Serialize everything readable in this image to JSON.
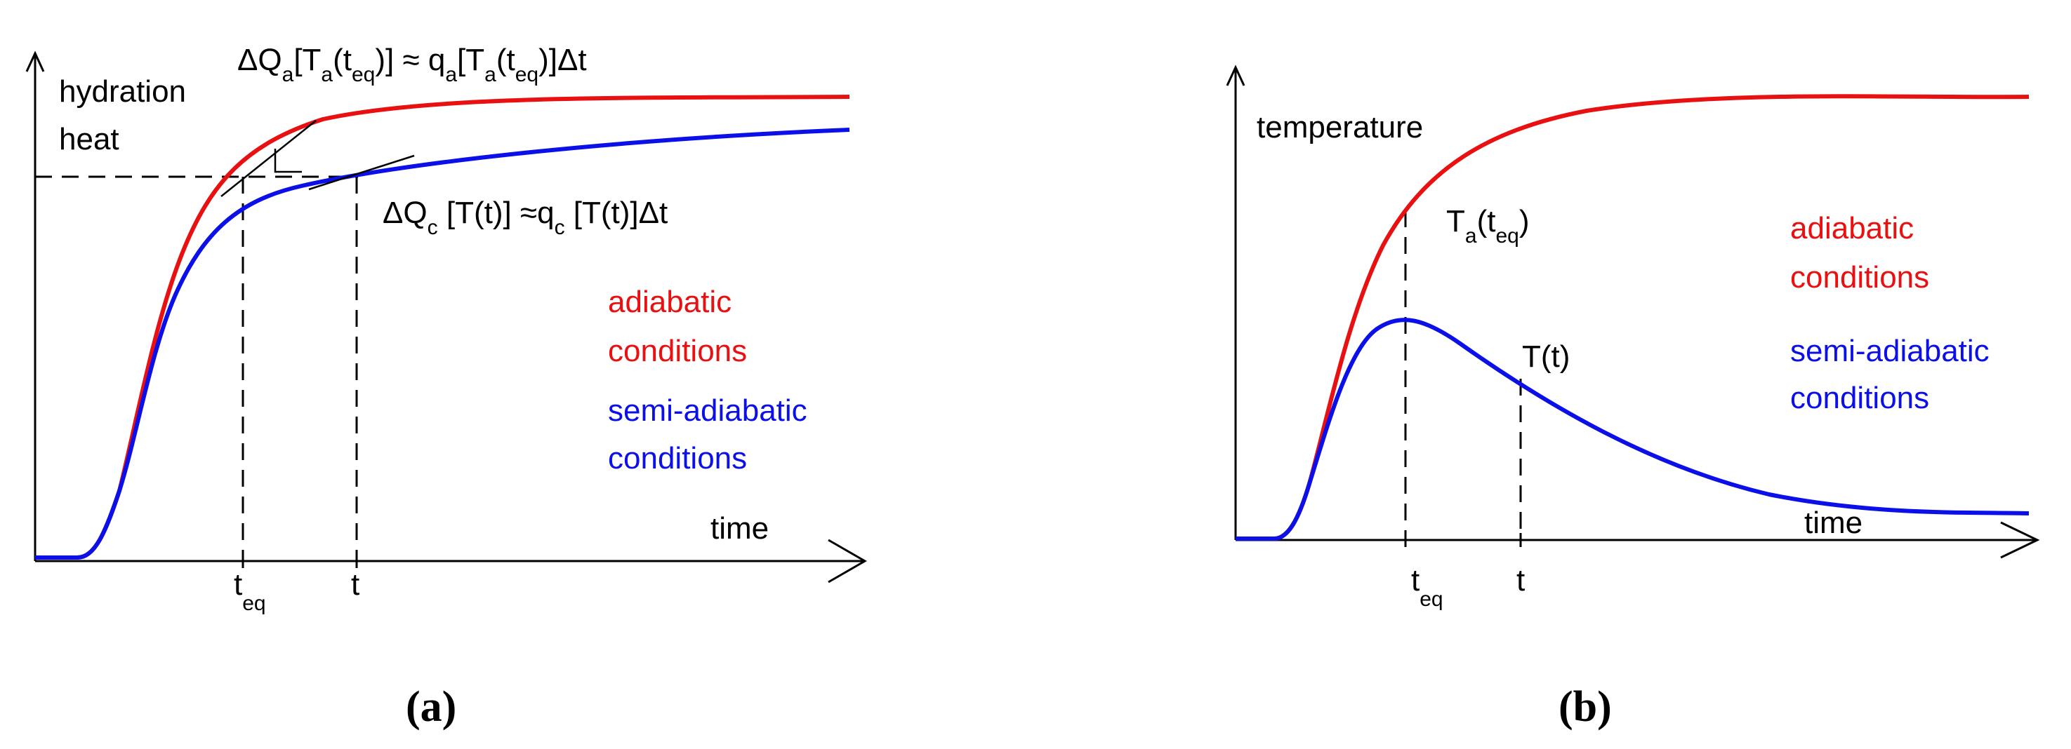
{
  "panel_a": {
    "caption": "(a)",
    "y_axis_label_line1": "hydration",
    "y_axis_label_line2": "heat",
    "x_axis_label": "time",
    "tick_teq_main": "t",
    "tick_teq_sub": "eq",
    "tick_t": "t",
    "eq_adiabatic": {
      "p1": "ΔQ",
      "s1": "a",
      "p2": "[T",
      "s2": "a",
      "p3": "(t",
      "s3": "eq",
      "p4": ")] ≈ q",
      "s4": "a",
      "p5": "[T",
      "s5": "a",
      "p6": "(t",
      "s6": "eq",
      "p7": ")]Δt"
    },
    "eq_semi": {
      "p1": "ΔQ",
      "s1": "c",
      "p2": " [T(t)] ≈q",
      "s2": "c",
      "p3": " [T(t)]Δt"
    },
    "legend_adiabatic_line1": "adiabatic",
    "legend_adiabatic_line2": "conditions",
    "legend_semi_line1": "semi-adiabatic",
    "legend_semi_line2": "conditions"
  },
  "panel_b": {
    "caption": "(b)",
    "y_axis_label": "temperature",
    "x_axis_label": "time",
    "tick_teq_main": "t",
    "tick_teq_sub": "eq",
    "tick_t": "t",
    "label_ta_main": "T",
    "label_ta_sub": "a",
    "label_ta_paren": "(t",
    "label_ta_sub2": "eq",
    "label_ta_close": ")",
    "label_tt": "T(t)",
    "legend_adiabatic_line1": "adiabatic",
    "legend_adiabatic_line2": "conditions",
    "legend_semi_line1": "semi-adiabatic",
    "legend_semi_line2": "conditions"
  },
  "colors": {
    "adiabatic": "#e81010",
    "semi_adiabatic": "#0c10e8",
    "axes": "#000000"
  }
}
